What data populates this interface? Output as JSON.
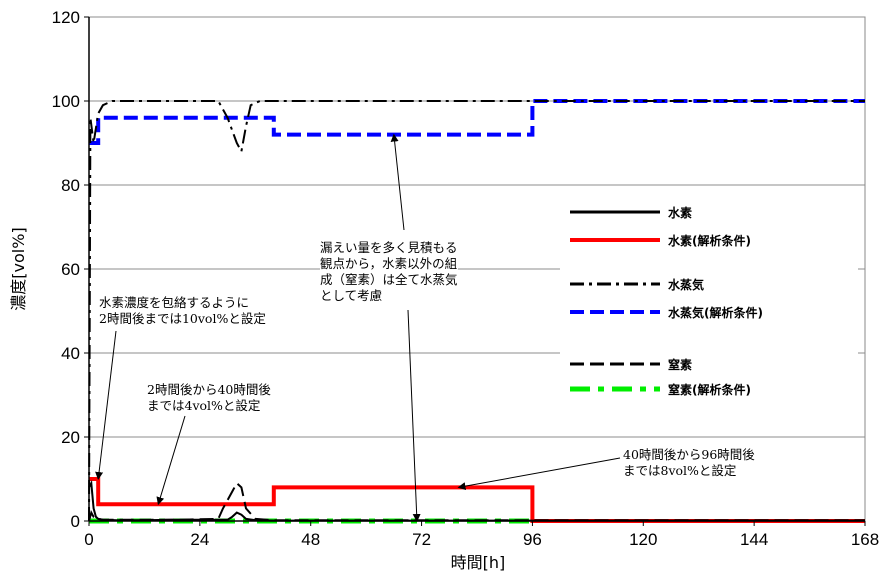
{
  "chart_data": {
    "type": "line",
    "xlabel": "時間[h]",
    "ylabel": "濃度[vol%]",
    "xlim": [
      0,
      168
    ],
    "ylim": [
      0,
      120
    ],
    "xticks": [
      0,
      24,
      48,
      72,
      96,
      120,
      144,
      168
    ],
    "yticks": [
      0,
      20,
      40,
      60,
      80,
      100,
      120
    ],
    "grid": "horizontal",
    "legend_position": "right",
    "series": [
      {
        "name": "水素",
        "color": "#000000",
        "style": "solid",
        "x": [
          0,
          0.5,
          1,
          1.5,
          2,
          3,
          6,
          12,
          18,
          24,
          30,
          31,
          32,
          33,
          34,
          36,
          40,
          48,
          60,
          72,
          84,
          96,
          120,
          144,
          168
        ],
        "y": [
          8,
          9,
          3,
          1,
          0.5,
          0.3,
          0.2,
          0.2,
          0.3,
          0.3,
          0.3,
          1,
          2,
          1.5,
          0.5,
          0.2,
          0.1,
          0.1,
          0.1,
          0.1,
          0.1,
          0.1,
          0.1,
          0.1,
          0.1
        ]
      },
      {
        "name": "水素(解析条件)",
        "color": "#ff0000",
        "style": "solid",
        "x": [
          0,
          2,
          2,
          40,
          40,
          96,
          96,
          168
        ],
        "y": [
          10,
          10,
          4,
          4,
          8,
          8,
          0,
          0
        ]
      },
      {
        "name": "水蒸気",
        "color": "#000000",
        "style": "dashdot",
        "x": [
          0,
          0.3,
          1,
          2,
          3,
          5,
          10,
          20,
          28,
          30,
          32,
          33,
          34,
          35,
          37,
          40,
          60,
          80,
          96,
          120,
          168
        ],
        "y": [
          0,
          96,
          90,
          97,
          99,
          100,
          100,
          100,
          100,
          96,
          90,
          88,
          94,
          99,
          100,
          100,
          100,
          100,
          100,
          100,
          100
        ]
      },
      {
        "name": "水蒸気(解析条件)",
        "color": "#0000ff",
        "style": "dashed",
        "x": [
          0,
          2,
          2,
          40,
          40,
          96,
          96,
          168
        ],
        "y": [
          90,
          90,
          96,
          96,
          92,
          92,
          100,
          100
        ]
      },
      {
        "name": "窒素",
        "color": "#000000",
        "style": "dashed",
        "x": [
          0,
          0.5,
          1,
          2,
          3,
          10,
          20,
          28,
          29,
          30,
          31,
          32,
          33,
          34,
          36,
          40,
          60,
          80,
          96,
          120,
          168
        ],
        "y": [
          0,
          2,
          1,
          0.5,
          0.3,
          0.3,
          0.3,
          0.5,
          3,
          5,
          7,
          9,
          8,
          3,
          0.5,
          0.2,
          0.2,
          0.2,
          0.2,
          0.2,
          0.2
        ]
      },
      {
        "name": "窒素(解析条件)",
        "color": "#00ee00",
        "style": "dashdot",
        "x": [
          0,
          96
        ],
        "y": [
          0,
          0
        ]
      }
    ],
    "annotations": [
      {
        "text": [
          "水素濃度を包絡するように",
          "2時間後までは10vol%と設定"
        ],
        "target": [
          2,
          10
        ]
      },
      {
        "text": [
          "2時間後から40時間後",
          "までは4vol%と設定"
        ],
        "target": [
          15,
          4
        ]
      },
      {
        "text": [
          "漏えい量を多く見積もる",
          "観点から，水素以外の組",
          "成（窒素）は全て水蒸気",
          "として考慮"
        ],
        "targets": [
          [
            66,
            92
          ],
          [
            71,
            0
          ]
        ]
      },
      {
        "text": [
          "40時間後から96時間後",
          "までは8vol%と設定"
        ],
        "target": [
          80,
          8
        ]
      }
    ]
  }
}
